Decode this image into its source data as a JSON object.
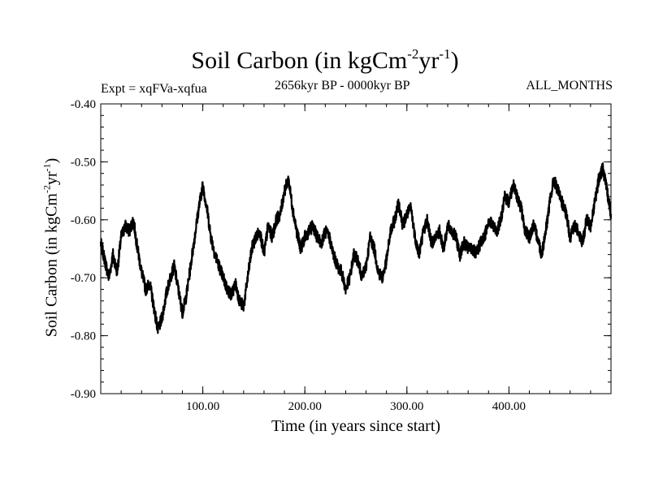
{
  "chart_data": {
    "type": "line",
    "title": "Soil Carbon (in kgCm",
    "title_sup1": "-2",
    "title_mid": "yr",
    "title_sup2": "-1",
    "title_end": ")",
    "left_annotation": "Expt = xqFVa-xqfua",
    "center_annotation": "2656kyr BP - 0000kyr BP",
    "right_annotation": "ALL_MONTHS",
    "xlabel": "Time (in years since start)",
    "ylabel": "Soil Carbon (in kgCm",
    "ylabel_sup1": "-2",
    "ylabel_mid": "yr",
    "ylabel_sup2": "-1",
    "ylabel_end": ")",
    "xlim": [
      0,
      500
    ],
    "ylim": [
      -0.9,
      -0.4
    ],
    "x_ticks": [
      100,
      200,
      300,
      400
    ],
    "x_tick_labels": [
      "100.00",
      "200.00",
      "300.00",
      "400.00"
    ],
    "y_ticks": [
      -0.9,
      -0.8,
      -0.7,
      -0.6,
      -0.5,
      -0.4
    ],
    "y_tick_labels": [
      "-0.90",
      "-0.80",
      "-0.70",
      "-0.60",
      "-0.50",
      "-0.40"
    ],
    "line_color": "#000000",
    "series": [
      {
        "name": "Soil Carbon",
        "x": [
          0,
          4,
          8,
          12,
          16,
          20,
          24,
          28,
          32,
          36,
          40,
          44,
          48,
          52,
          56,
          60,
          64,
          68,
          72,
          76,
          80,
          84,
          88,
          92,
          96,
          100,
          104,
          108,
          112,
          116,
          120,
          124,
          128,
          132,
          136,
          140,
          144,
          148,
          152,
          156,
          160,
          164,
          168,
          172,
          176,
          180,
          184,
          188,
          192,
          196,
          200,
          204,
          208,
          212,
          216,
          220,
          224,
          228,
          232,
          236,
          240,
          244,
          248,
          252,
          256,
          260,
          264,
          268,
          272,
          276,
          280,
          284,
          288,
          292,
          296,
          300,
          304,
          308,
          312,
          316,
          320,
          324,
          328,
          332,
          336,
          340,
          344,
          348,
          352,
          356,
          360,
          364,
          368,
          372,
          376,
          380,
          384,
          388,
          392,
          396,
          400,
          404,
          408,
          412,
          416,
          420,
          424,
          428,
          432,
          436,
          440,
          444,
          448,
          452,
          456,
          460,
          464,
          468,
          472,
          476,
          480,
          484,
          488,
          492,
          496,
          500
        ],
        "y": [
          -0.64,
          -0.67,
          -0.7,
          -0.66,
          -0.69,
          -0.63,
          -0.61,
          -0.62,
          -0.6,
          -0.65,
          -0.69,
          -0.72,
          -0.71,
          -0.75,
          -0.79,
          -0.77,
          -0.73,
          -0.7,
          -0.68,
          -0.72,
          -0.76,
          -0.73,
          -0.68,
          -0.63,
          -0.58,
          -0.54,
          -0.58,
          -0.63,
          -0.66,
          -0.68,
          -0.7,
          -0.72,
          -0.73,
          -0.71,
          -0.74,
          -0.75,
          -0.7,
          -0.65,
          -0.63,
          -0.62,
          -0.66,
          -0.61,
          -0.63,
          -0.6,
          -0.59,
          -0.55,
          -0.53,
          -0.58,
          -0.62,
          -0.65,
          -0.63,
          -0.62,
          -0.61,
          -0.63,
          -0.64,
          -0.62,
          -0.63,
          -0.66,
          -0.68,
          -0.69,
          -0.72,
          -0.7,
          -0.66,
          -0.67,
          -0.7,
          -0.68,
          -0.63,
          -0.65,
          -0.69,
          -0.7,
          -0.67,
          -0.62,
          -0.6,
          -0.57,
          -0.61,
          -0.59,
          -0.58,
          -0.63,
          -0.66,
          -0.62,
          -0.6,
          -0.64,
          -0.63,
          -0.62,
          -0.65,
          -0.61,
          -0.62,
          -0.63,
          -0.66,
          -0.64,
          -0.65,
          -0.65,
          -0.66,
          -0.64,
          -0.63,
          -0.6,
          -0.61,
          -0.62,
          -0.6,
          -0.56,
          -0.57,
          -0.54,
          -0.56,
          -0.58,
          -0.62,
          -0.63,
          -0.61,
          -0.63,
          -0.66,
          -0.62,
          -0.57,
          -0.53,
          -0.55,
          -0.57,
          -0.59,
          -0.63,
          -0.61,
          -0.62,
          -0.64,
          -0.6,
          -0.61,
          -0.57,
          -0.53,
          -0.51,
          -0.55,
          -0.59
        ]
      }
    ]
  }
}
